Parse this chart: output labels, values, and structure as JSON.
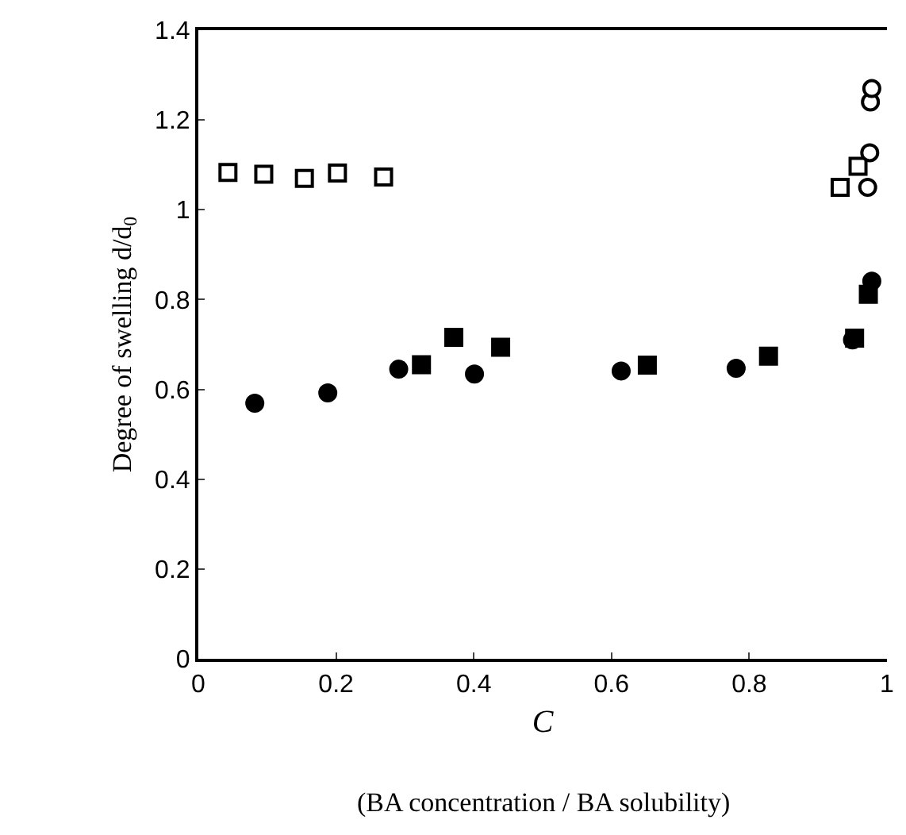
{
  "chart_data": {
    "type": "scatter",
    "xlabel": "C",
    "ylabel": "Degree of swelling d/d$_{0}$",
    "annotations": [
      "(BA concentration / BA solubility)"
    ],
    "xlim": [
      0,
      1
    ],
    "xticks": [
      0,
      0.2,
      0.4,
      0.6,
      0.8,
      1
    ],
    "ylim": [
      0,
      1.4
    ],
    "yticks": [
      0,
      0.2,
      0.4,
      0.6,
      0.8,
      1,
      1.2,
      1.4
    ],
    "grid": false,
    "series": [
      {
        "color": "#ffffff",
        "marker": "square",
        "x": [
          0.043,
          0.095,
          0.154,
          0.202,
          0.269,
          0.932,
          0.958
        ],
        "values": [
          1.083,
          1.079,
          1.07,
          1.082,
          1.073,
          1.05,
          1.097
        ]
      },
      {
        "color": "#ffffff",
        "marker": "circle",
        "x": [
          0.975,
          0.972,
          0.976,
          0.978
        ],
        "values": [
          1.127,
          1.05,
          1.24,
          1.27
        ]
      },
      {
        "color": "#000000",
        "marker": "square",
        "x": [
          0.324,
          0.371,
          0.439,
          0.652,
          0.828,
          0.953,
          0.973
        ],
        "values": [
          0.655,
          0.716,
          0.694,
          0.654,
          0.674,
          0.714,
          0.812
        ]
      },
      {
        "color": "#000000",
        "marker": "circle",
        "x": [
          0.082,
          0.188,
          0.291,
          0.401,
          0.614,
          0.781,
          0.95,
          0.978
        ],
        "values": [
          0.569,
          0.592,
          0.645,
          0.634,
          0.641,
          0.647,
          0.71,
          0.841
        ]
      }
    ]
  }
}
